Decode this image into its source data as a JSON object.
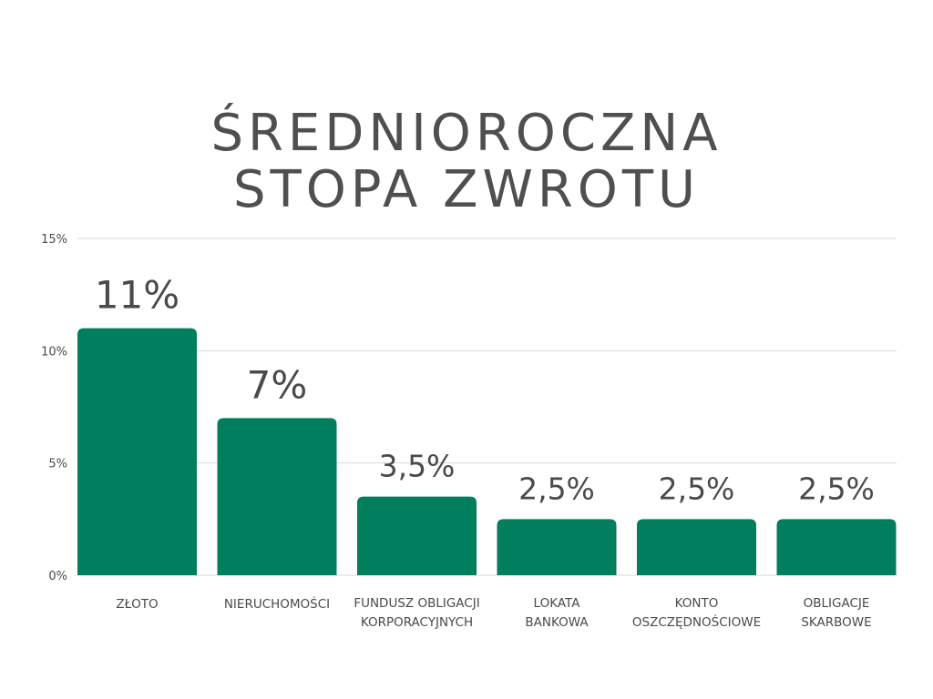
{
  "title_lines": [
    "ŚREDNIOROCZNA",
    "STOPA ZWROTU"
  ],
  "colors": {
    "bar": "#007e5e",
    "grid": "#d9d9d9",
    "text": "#4a4a4a"
  },
  "chart_data": {
    "type": "bar",
    "title": "ŚREDNIOROCZNA STOPA ZWROTU",
    "categories": [
      [
        "ZŁOTO"
      ],
      [
        "NIERUCHOMOŚCI"
      ],
      [
        "FUNDUSZ OBLIGACJI",
        "KORPORACYJNYCH"
      ],
      [
        "LOKATA",
        "BANKOWA"
      ],
      [
        "KONTO",
        "OSZCZĘDNOŚCIOWE"
      ],
      [
        "OBLIGACJE",
        "SKARBOWE"
      ]
    ],
    "values": [
      11,
      7,
      3.5,
      2.5,
      2.5,
      2.5
    ],
    "data_labels": [
      "11%",
      "7%",
      "3,5%",
      "2,5%",
      "2,5%",
      "2,5%"
    ],
    "ylim": [
      0,
      15
    ],
    "yticks": [
      0,
      5,
      10,
      15
    ],
    "ytick_labels": [
      "0%",
      "5%",
      "10%",
      "15%"
    ],
    "grid": true
  }
}
